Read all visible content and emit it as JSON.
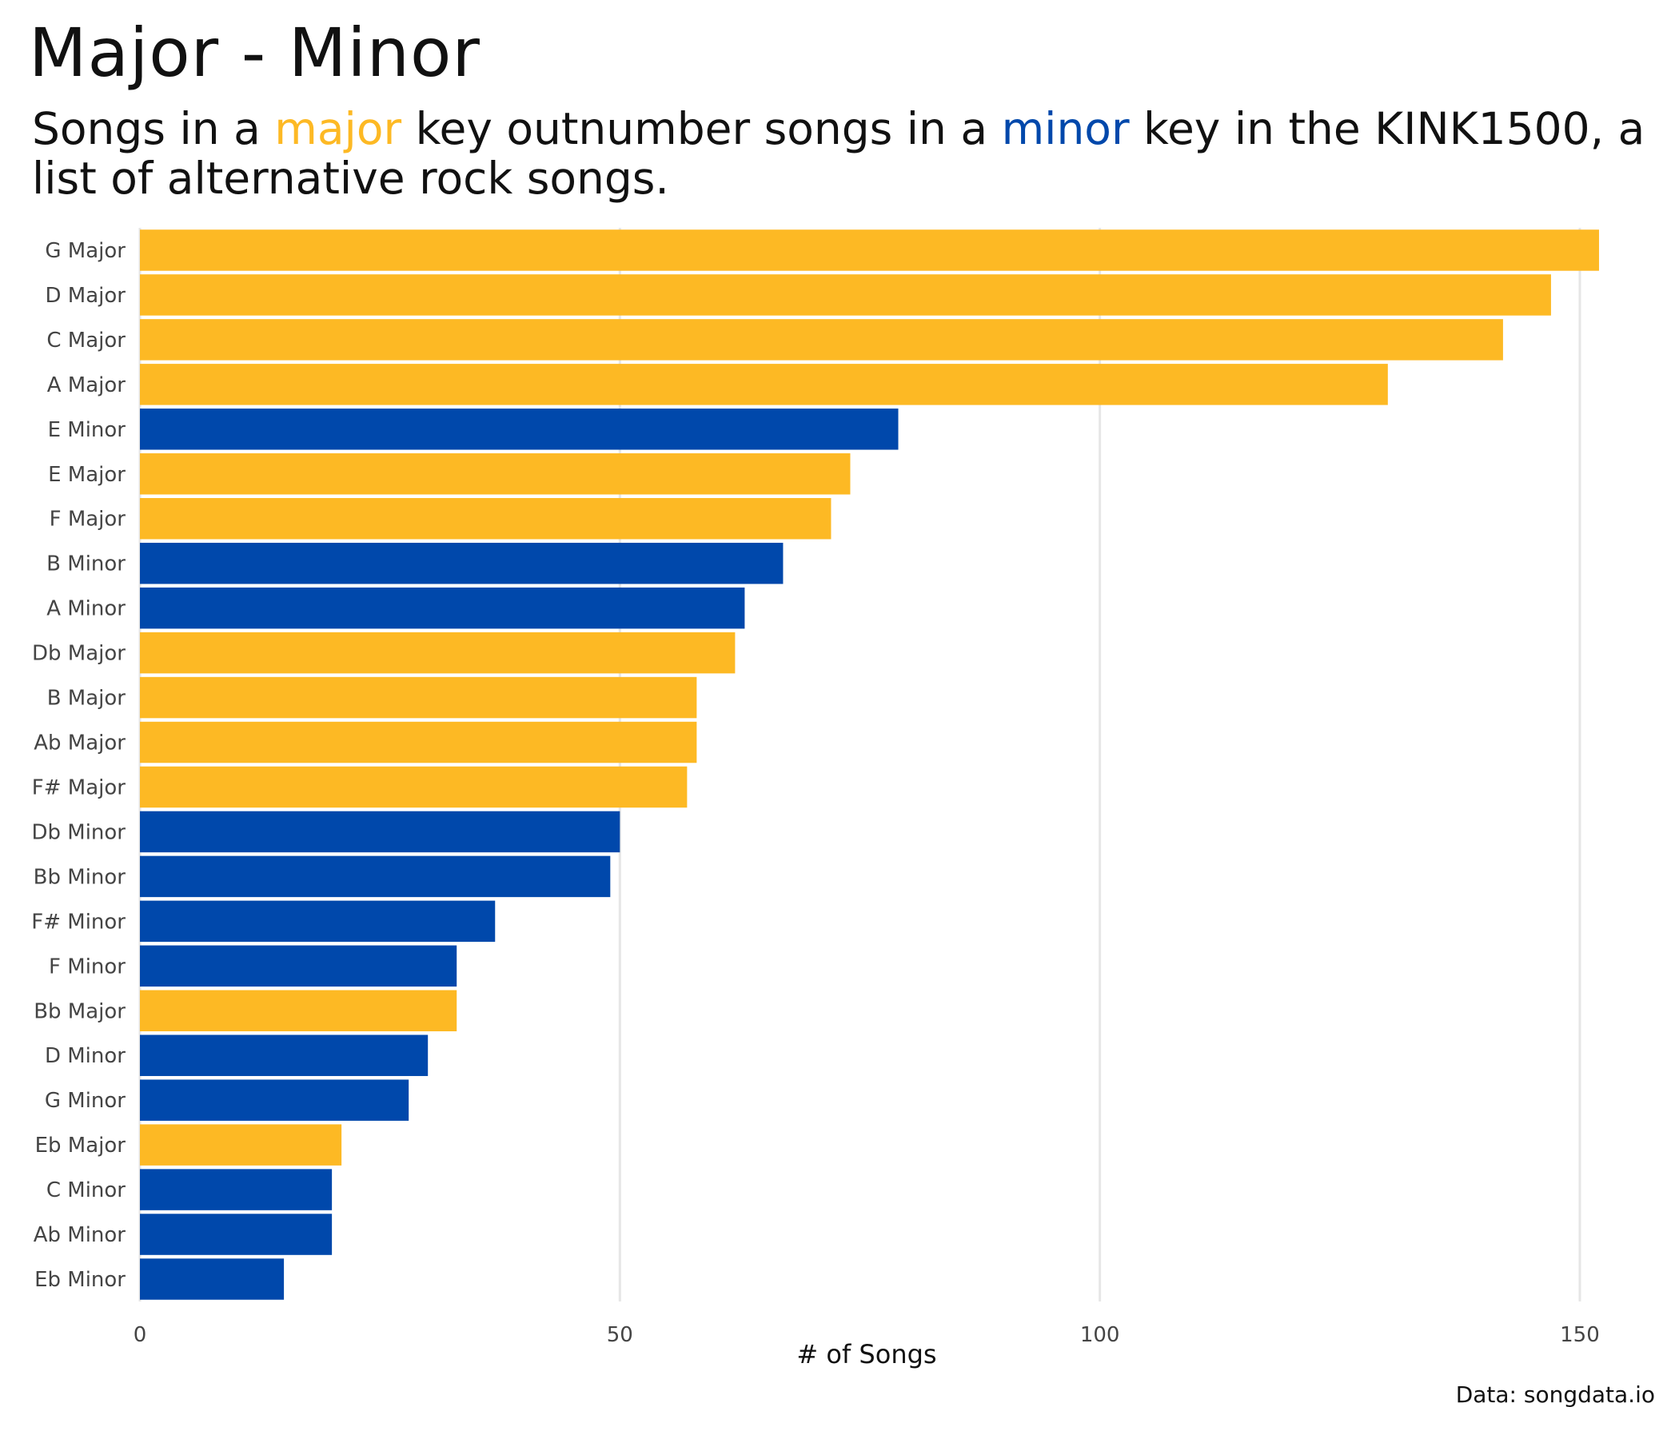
{
  "title": "Major - Minor",
  "subtitle": {
    "part1": "Songs in a ",
    "major_word": "major",
    "part2": " key outnumber songs in a ",
    "minor_word": "minor",
    "part3": " key in the KINK1500, a list of alternative rock songs."
  },
  "caption": "Data: songdata.io",
  "colors": {
    "major": "#FDB924",
    "minor": "#0048AB",
    "grid": "#E6E6E6"
  },
  "chart_data": {
    "type": "bar",
    "orientation": "horizontal",
    "xlabel": "# of Songs",
    "ylabel": "",
    "xlim": [
      0,
      157
    ],
    "xticks": [
      0,
      50,
      100,
      150
    ],
    "grid": "vertical major gridlines",
    "legend": "none (colors explained in subtitle)",
    "categories": [
      "G Major",
      "D Major",
      "C Major",
      "A Major",
      "E Minor",
      "E Major",
      "F Major",
      "B Minor",
      "A Minor",
      "Db Major",
      "B Major",
      "Ab Major",
      "F# Major",
      "Db Minor",
      "Bb Minor",
      "F# Minor",
      "F Minor",
      "Bb Major",
      "D Minor",
      "G Minor",
      "Eb Major",
      "C Minor",
      "Ab Minor",
      "Eb Minor"
    ],
    "values": [
      152,
      147,
      142,
      130,
      79,
      74,
      72,
      67,
      63,
      62,
      58,
      58,
      57,
      50,
      49,
      37,
      33,
      33,
      30,
      28,
      21,
      20,
      20,
      15
    ],
    "mode": [
      "major",
      "major",
      "major",
      "major",
      "minor",
      "major",
      "major",
      "minor",
      "minor",
      "major",
      "major",
      "major",
      "major",
      "minor",
      "minor",
      "minor",
      "minor",
      "major",
      "minor",
      "minor",
      "major",
      "minor",
      "minor",
      "minor"
    ]
  }
}
